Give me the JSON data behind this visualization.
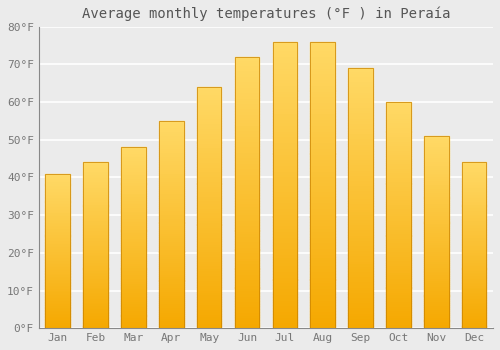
{
  "title": "Average monthly temperatures (°F ) in Peraía",
  "months": [
    "Jan",
    "Feb",
    "Mar",
    "Apr",
    "May",
    "Jun",
    "Jul",
    "Aug",
    "Sep",
    "Oct",
    "Nov",
    "Dec"
  ],
  "values": [
    41,
    44,
    48,
    55,
    64,
    72,
    76,
    76,
    69,
    60,
    51,
    44
  ],
  "bar_color_dark": "#F5A800",
  "bar_color_light": "#FFD966",
  "bar_edge_color": "#C88000",
  "ylim": [
    0,
    80
  ],
  "yticks": [
    0,
    10,
    20,
    30,
    40,
    50,
    60,
    70,
    80
  ],
  "ytick_labels": [
    "0°F",
    "10°F",
    "20°F",
    "30°F",
    "40°F",
    "50°F",
    "60°F",
    "70°F",
    "80°F"
  ],
  "background_color": "#ebebeb",
  "grid_color": "#ffffff",
  "title_fontsize": 10,
  "tick_fontsize": 8,
  "tick_color": "#777777",
  "title_color": "#555555"
}
